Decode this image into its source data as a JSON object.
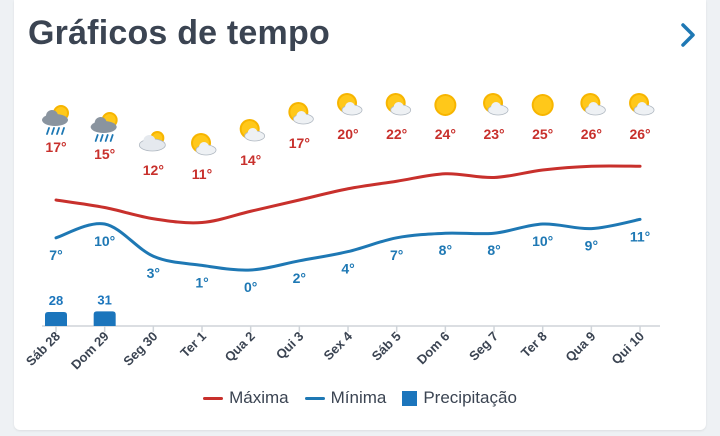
{
  "header": {
    "title": "Gráficos de tempo"
  },
  "colors": {
    "max": "#c8302c",
    "min": "#1e78b4",
    "precip": "#1b75bc",
    "axis": "#cfd4d9",
    "card": "#ffffff"
  },
  "legend": {
    "max_label": "Máxima",
    "min_label": "Mínima",
    "precip_label": "Precipitação"
  },
  "chart_data": {
    "type": "line",
    "categories": [
      "Sáb 28",
      "Dom 29",
      "Seg 30",
      "Ter 1",
      "Qua 2",
      "Qui 3",
      "Sex 4",
      "Sáb 5",
      "Dom 6",
      "Seg 7",
      "Ter 8",
      "Qua 9",
      "Qui 10"
    ],
    "icons": [
      "rain-sun-icon",
      "rain-sun-icon",
      "cloud-sun-icon",
      "sun-cloud-icon",
      "sun-cloud-icon",
      "sun-cloud-icon",
      "sun-cloud-icon",
      "sun-cloud-icon",
      "sun-icon",
      "sun-cloud-icon",
      "sun-icon",
      "sun-cloud-icon",
      "sun-cloud-icon"
    ],
    "series": [
      {
        "name": "Máxima",
        "values": [
          17,
          15,
          12,
          11,
          14,
          17,
          20,
          22,
          24,
          23,
          25,
          26,
          26
        ],
        "labels": [
          "17°",
          "15°",
          "12°",
          "11°",
          "14°",
          "17°",
          "20°",
          "22°",
          "24°",
          "23°",
          "25°",
          "26°",
          "26°"
        ]
      },
      {
        "name": "Mínima",
        "values": [
          7,
          10,
          3,
          1,
          0,
          2,
          4,
          7,
          8,
          8,
          10,
          9,
          11
        ],
        "labels": [
          "7°",
          "10°",
          "3°",
          "1°",
          "0°",
          "2°",
          "4°",
          "7°",
          "8°",
          "8°",
          "10°",
          "9°",
          "11°"
        ]
      }
    ],
    "precipitation": {
      "name": "Precipitação",
      "values": [
        28,
        31,
        0,
        0,
        0,
        0,
        0,
        0,
        0,
        0,
        0,
        0,
        0
      ],
      "labels": [
        "28",
        "31",
        "",
        "",
        "",
        "",
        "",
        "",
        "",
        "",
        "",
        "",
        ""
      ]
    },
    "grid": false,
    "legend": "bottom"
  }
}
